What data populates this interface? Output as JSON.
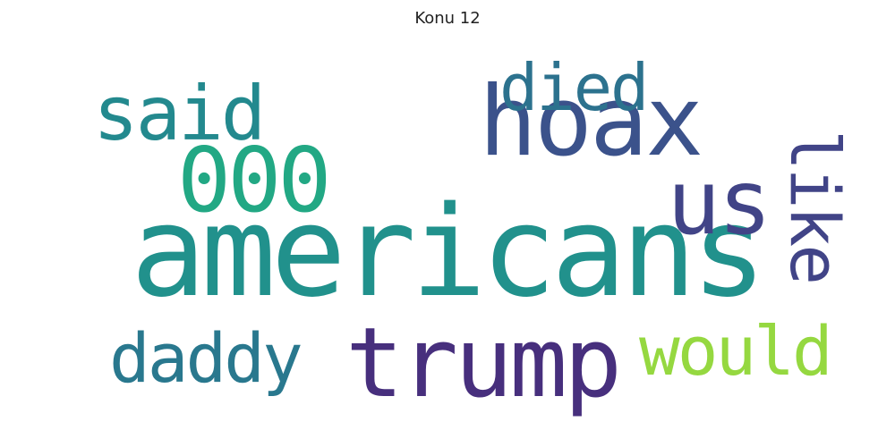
{
  "title": "Konu 12",
  "words": {
    "americans": {
      "text": "americans",
      "color": "#21918c"
    },
    "trump": {
      "text": "trump",
      "color": "#472f7d"
    },
    "hoax": {
      "text": "hoax",
      "color": "#3b528b"
    },
    "zeros": {
      "text": "000",
      "color": "#22a884"
    },
    "us": {
      "text": "us",
      "color": "#414487"
    },
    "said": {
      "text": "said",
      "color": "#23898e"
    },
    "daddy": {
      "text": "daddy",
      "color": "#29788e"
    },
    "would": {
      "text": "would",
      "color": "#95d840"
    },
    "died": {
      "text": "died",
      "color": "#2c728e"
    },
    "like": {
      "text": "like",
      "color": "#414487"
    }
  }
}
